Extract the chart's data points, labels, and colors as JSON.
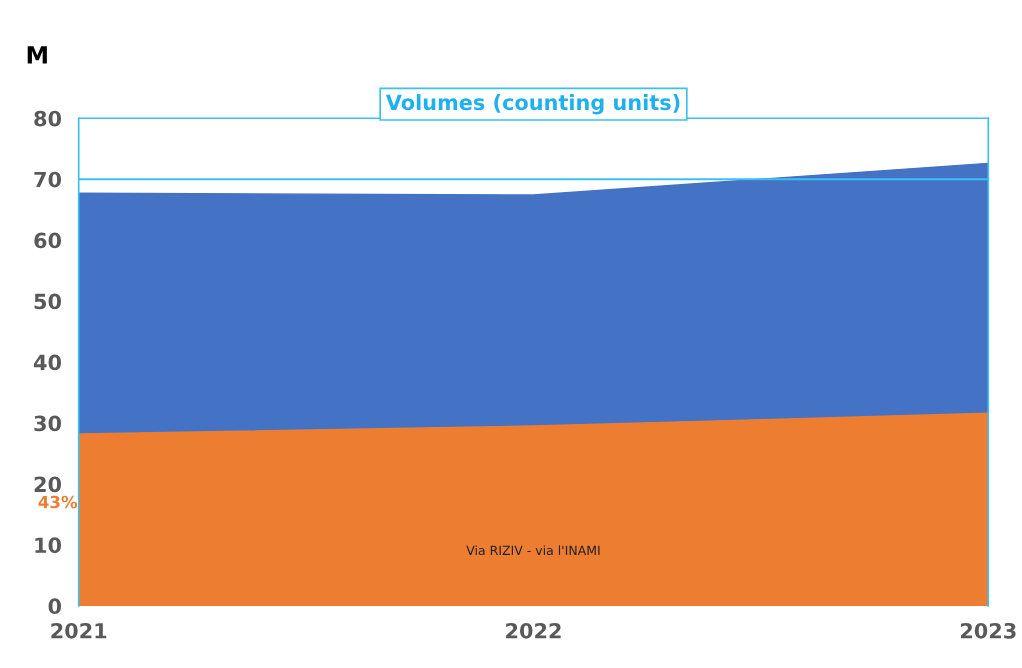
{
  "chart_data": {
    "type": "area",
    "stacked": true,
    "title": "Volumes (counting units)",
    "ylabel": "M",
    "categories": [
      "2021",
      "2022",
      "2023"
    ],
    "series": [
      {
        "name": "Via RIZIV - via l'INAMI",
        "color": "#ed7d31",
        "values": [
          28.2,
          29.5,
          31.6
        ]
      },
      {
        "color": "#4472c4",
        "values": [
          39.5,
          37.9,
          41.0
        ]
      }
    ],
    "ylim": [
      0,
      80
    ],
    "yticks": [
      0,
      10,
      20,
      30,
      40,
      50,
      60,
      70,
      80
    ],
    "ref_lines": [
      {
        "axis": "y",
        "value": 70,
        "color": "#3cc0f0"
      }
    ],
    "annotations": [
      "43%"
    ],
    "grid": false,
    "legend": false
  }
}
